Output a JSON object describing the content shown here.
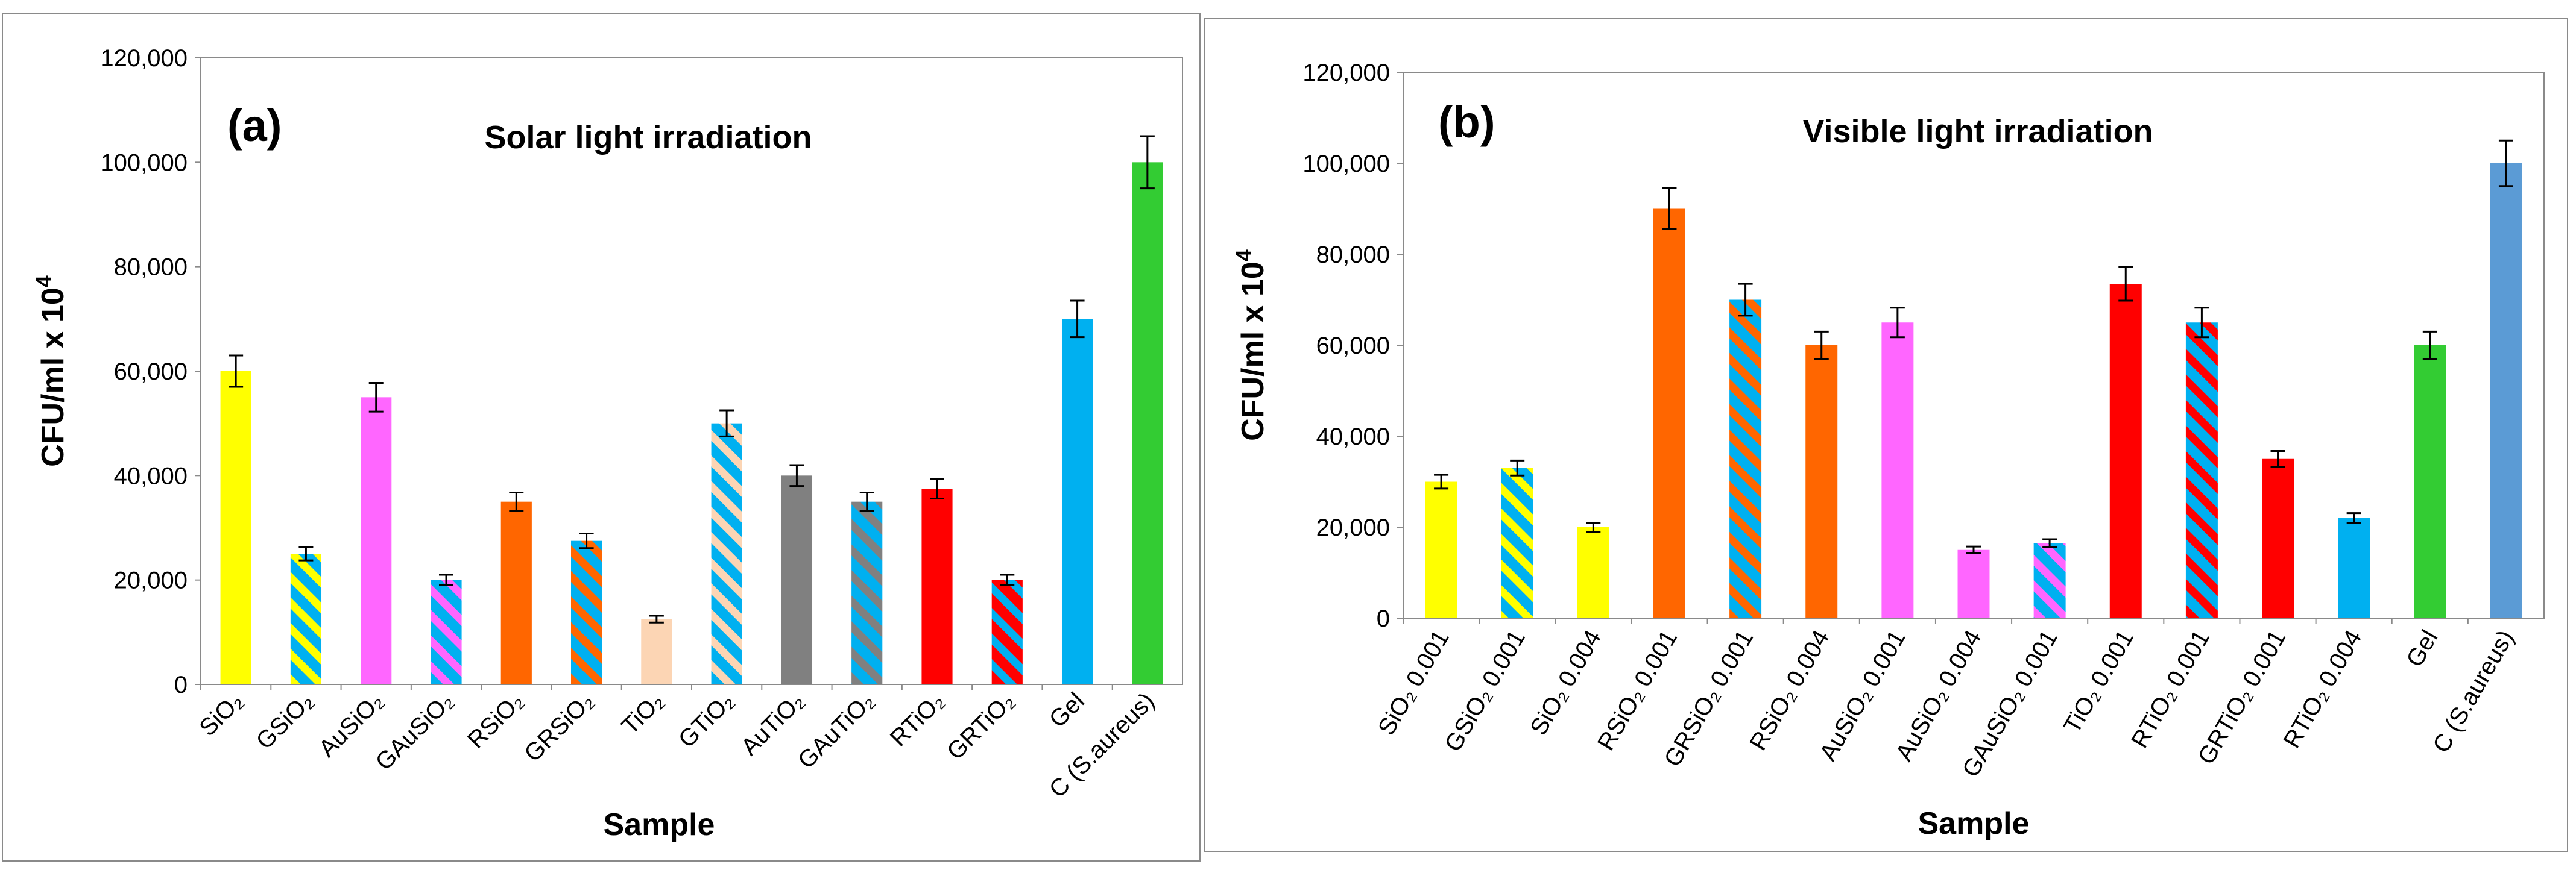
{
  "chart_data": [
    {
      "type": "bar",
      "panel_label": "(a)",
      "title": "Solar light irradiation",
      "xlabel": "Sample",
      "ylabel_base": "CFU/ml x 10",
      "ylabel_exp": "4",
      "ylim": [
        0,
        120000
      ],
      "yticks": [
        "0",
        "20,000",
        "40,000",
        "60,000",
        "80,000",
        "100,000",
        "120,000"
      ],
      "categories": [
        "SiO₂",
        "GSiO₂",
        "AuSiO₂",
        "GAuSiO₂",
        "RSiO₂",
        "GRSiO₂",
        "TiO₂",
        "GTiO₂",
        "AuTiO₂",
        "GAuTiO₂",
        "RTiO₂",
        "GRTiO₂",
        "Gel",
        "C (S.aureus)"
      ],
      "values": [
        60000,
        25000,
        55000,
        20000,
        35000,
        27500,
        12500,
        50000,
        40000,
        35000,
        37500,
        20000,
        70000,
        100000
      ],
      "errors": [
        3000,
        1250,
        2750,
        1000,
        1750,
        1400,
        650,
        2500,
        2000,
        1750,
        1900,
        1000,
        3500,
        5000
      ],
      "bar_colors": [
        "#ffff00",
        "#00b0f0",
        "#ff66ff",
        "#00b0f0",
        "#ff6600",
        "#00b0f0",
        "#fcd5b4",
        "#00b0f0",
        "#808080",
        "#00b0f0",
        "#ff0000",
        "#ff0000",
        "#00b0f0",
        "#33cc33"
      ],
      "stripe_colors": [
        null,
        "#ffff00",
        null,
        "#ff66ff",
        null,
        "#ff6600",
        null,
        "#fcd5b4",
        null,
        "#808080",
        null,
        "#00b0f0",
        null,
        null
      ]
    },
    {
      "type": "bar",
      "panel_label": "(b)",
      "title": "Visible light irradiation",
      "xlabel": "Sample",
      "ylabel_base": "CFU/ml x 10",
      "ylabel_exp": "4",
      "ylim": [
        0,
        120000
      ],
      "yticks": [
        "0",
        "20,000",
        "40,000",
        "60,000",
        "80,000",
        "100,000",
        "120,000"
      ],
      "categories": [
        "SiO₂ 0.001",
        "GSiO₂ 0.001",
        "SiO₂ 0.004",
        "RSiO₂ 0.001",
        "GRSiO₂ 0.001",
        "RSiO₂ 0.004",
        "AuSiO₂ 0.001",
        "AuSiO₂ 0.004",
        "GAuSiO₂ 0.001",
        "TiO₂ 0.001",
        "RTiO₂ 0.001",
        "GRTiO₂ 0.001",
        "RTiO₂ 0.004",
        "Gel",
        "C (S.aureus)"
      ],
      "values": [
        30000,
        33000,
        20000,
        90000,
        70000,
        60000,
        65000,
        15000,
        16500,
        73500,
        65000,
        35000,
        22000,
        60000,
        100000
      ],
      "errors": [
        1500,
        1650,
        1000,
        4500,
        3500,
        3000,
        3250,
        750,
        850,
        3700,
        3250,
        1750,
        1100,
        3000,
        5000
      ],
      "bar_colors": [
        "#ffff00",
        "#00b0f0",
        "#ffff00",
        "#ff6600",
        "#00b0f0",
        "#ff6600",
        "#ff66ff",
        "#ff66ff",
        "#00b0f0",
        "#ff0000",
        "#00b0f0",
        "#ff0000",
        "#00b0f0",
        "#33cc33",
        "#5b9bd5"
      ],
      "stripe_colors": [
        null,
        "#ffff00",
        null,
        null,
        "#ff6600",
        null,
        null,
        null,
        "#ff66ff",
        null,
        "#ff0000",
        null,
        null,
        null,
        null
      ]
    }
  ]
}
